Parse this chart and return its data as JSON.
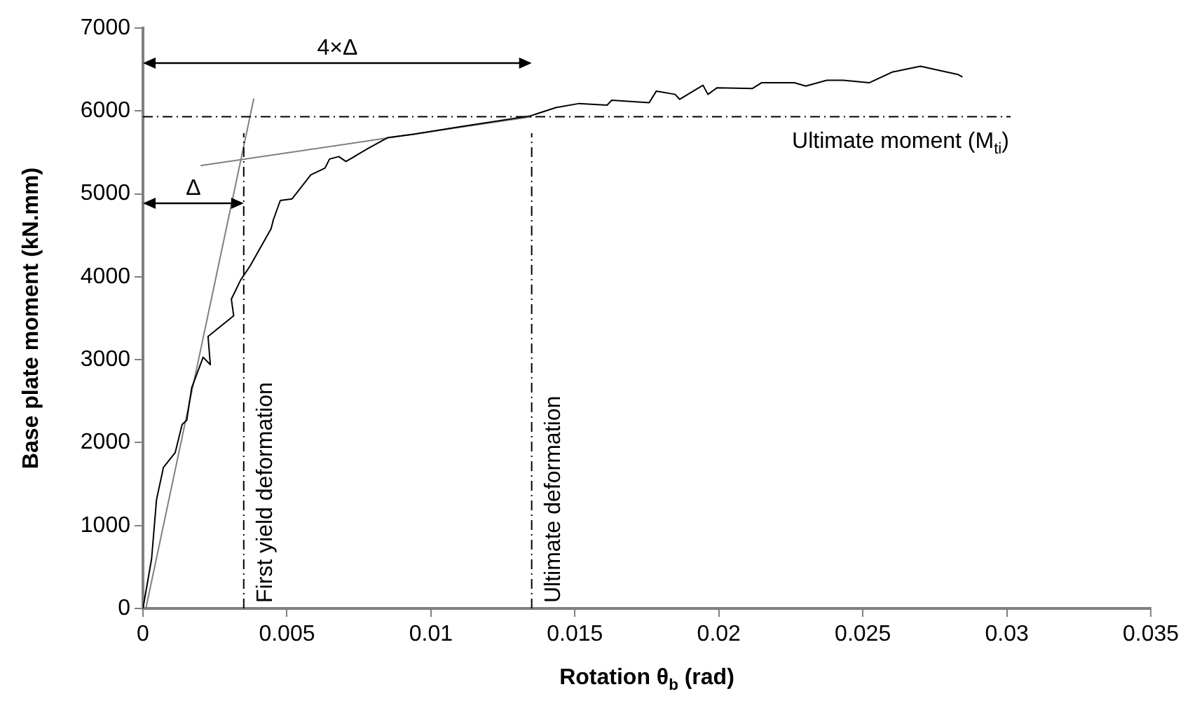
{
  "chart_data": {
    "type": "line",
    "xlabel": "Rotation θ$_{b}$ (rad)",
    "ylabel": "Base plate moment (kN.mm)",
    "xlim": [
      0,
      0.035
    ],
    "xticks": [
      0,
      0.005,
      0.01,
      0.015,
      0.02,
      0.025,
      0.03,
      0.035
    ],
    "ylim": [
      0,
      7000
    ],
    "yticks": [
      0,
      1000,
      2000,
      3000,
      4000,
      5000,
      6000,
      7000
    ],
    "grid": false,
    "legend": false,
    "marker": "none",
    "series": [
      {
        "color": "#000000",
        "x": [
          0,
          0.0003,
          0.00047,
          0.00071,
          0.00112,
          0.00136,
          0.00152,
          0.00169,
          0.00209,
          0.00234,
          0.00226,
          0.00315,
          0.00307,
          0.00339,
          0.00372,
          0.00445,
          0.00453,
          0.00477,
          0.00518,
          0.00583,
          0.00632,
          0.00648,
          0.0068,
          0.00705,
          0.00778,
          0.00851,
          0.0094,
          0.01102,
          0.01345,
          0.01434,
          0.01515,
          0.01612,
          0.01628,
          0.01758,
          0.01783,
          0.01848,
          0.01864,
          0.01945,
          0.01962,
          0.01994,
          0.02116,
          0.02148,
          0.02262,
          0.02302,
          0.02375,
          0.02432,
          0.02522,
          0.02603,
          0.027,
          0.0283,
          0.02846
        ],
        "values": [
          0,
          600,
          1310,
          1700,
          1880,
          2220,
          2270,
          2660,
          3030,
          2940,
          3280,
          3530,
          3730,
          3960,
          4130,
          4580,
          4690,
          4920,
          4940,
          5230,
          5310,
          5420,
          5450,
          5390,
          5540,
          5680,
          5720,
          5810,
          5940,
          6040,
          6090,
          6070,
          6130,
          6100,
          6240,
          6200,
          6140,
          6310,
          6200,
          6280,
          6270,
          6340,
          6340,
          6300,
          6370,
          6370,
          6340,
          6470,
          6540,
          6440,
          6410
        ]
      },
      {
        "color": "#808080",
        "x": [
          0.0001,
          0.00385
        ],
        "values": [
          0,
          6150
        ]
      },
      {
        "color": "#808080",
        "x": [
          0.002,
          0.0135
        ],
        "values": [
          5340,
          5930
        ]
      }
    ],
    "ref_lines": [
      {
        "axis": "x",
        "value": 0.0035,
        "label": "First yield deformation",
        "color": "#000000",
        "line_style": "dashed"
      },
      {
        "axis": "x",
        "value": 0.0135,
        "label": "Ultimate deformation",
        "color": "#000000",
        "line_style": "dashed"
      },
      {
        "axis": "y",
        "value": 5930,
        "label": "Ultimate moment (M$_{ti}$)",
        "color": "#000000",
        "line_style": "dashed"
      }
    ],
    "annotations": [
      "4×Δ",
      "Δ"
    ]
  }
}
